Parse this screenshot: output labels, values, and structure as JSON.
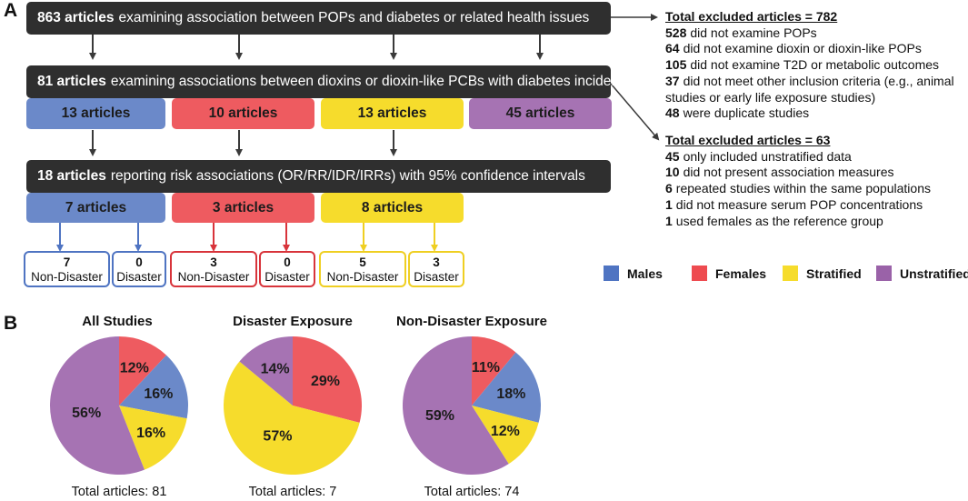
{
  "panel_a_label": "A",
  "panel_b_label": "B",
  "flow": {
    "step1": {
      "count": "863 articles",
      "text": "examining association between POPs and diabetes or related health issues"
    },
    "step2": {
      "count": "81 articles",
      "text": "examining associations between dioxins or dioxin-like PCBs with diabetes incidence"
    },
    "step3": {
      "count": "18 articles",
      "text": "reporting risk associations (OR/RR/IDR/IRRs) with 95% confidence intervals"
    },
    "categories_row1": [
      {
        "label": "13 articles",
        "color": "#6b89c9"
      },
      {
        "label": "10 articles",
        "color": "#ee5b60"
      },
      {
        "label": "13 articles",
        "color": "#f6dc2c"
      },
      {
        "label": "45 articles",
        "color": "#a673b3"
      }
    ],
    "categories_row2": [
      {
        "label": "7 articles",
        "color": "#6b89c9"
      },
      {
        "label": "3 articles",
        "color": "#ee5b60"
      },
      {
        "label": "8 articles",
        "color": "#f6dc2c"
      }
    ],
    "splits": [
      {
        "border": "#4f74c2",
        "items": [
          {
            "n": "7",
            "label": "Non-Disaster"
          },
          {
            "n": "0",
            "label": "Disaster"
          }
        ]
      },
      {
        "border": "#d8343b",
        "items": [
          {
            "n": "3",
            "label": "Non-Disaster"
          },
          {
            "n": "0",
            "label": "Disaster"
          }
        ]
      },
      {
        "border": "#efcf22",
        "items": [
          {
            "n": "5",
            "label": "Non-Disaster"
          },
          {
            "n": "3",
            "label": "Disaster"
          }
        ]
      }
    ]
  },
  "exclusions": [
    {
      "heading": "Total excluded articles = 782",
      "items": [
        {
          "n": "528",
          "text": "did not examine POPs"
        },
        {
          "n": "64",
          "text": "did not examine dioxin or dioxin-like POPs"
        },
        {
          "n": "105",
          "text": "did not examine T2D or metabolic outcomes"
        },
        {
          "n": "37",
          "text": "did not meet other inclusion criteria (e.g., animal"
        },
        {
          "n": "",
          "text": "studies or early life exposure studies)"
        },
        {
          "n": "48",
          "text": "were duplicate studies"
        }
      ]
    },
    {
      "heading": "Total excluded articles = 63",
      "items": [
        {
          "n": "45",
          "text": "only included unstratified data"
        },
        {
          "n": "10",
          "text": "did not present association measures"
        },
        {
          "n": "6",
          "text": "repeated studies within the same populations"
        },
        {
          "n": "1",
          "text": "did not measure serum POP concentrations"
        },
        {
          "n": "1",
          "text": "used females as the reference group"
        }
      ]
    }
  ],
  "legend": [
    {
      "label": "Males",
      "color": "#4f74c2"
    },
    {
      "label": "Females",
      "color": "#ee4b50"
    },
    {
      "label": "Stratified",
      "color": "#f6dc2c"
    },
    {
      "label": "Unstratified",
      "color": "#9a62a8"
    }
  ],
  "chart_data": [
    {
      "type": "pie",
      "title": "All Studies",
      "footer": "Total articles: 81",
      "slices": [
        {
          "name": "Females",
          "value": 12,
          "label": "12%",
          "color": "#ee5b60"
        },
        {
          "name": "Males",
          "value": 16,
          "label": "16%",
          "color": "#6b89c9"
        },
        {
          "name": "Stratified",
          "value": 16,
          "label": "16%",
          "color": "#f6dc2c"
        },
        {
          "name": "Unstratified",
          "value": 56,
          "label": "56%",
          "color": "#a673b3"
        }
      ]
    },
    {
      "type": "pie",
      "title": "Disaster Exposure",
      "footer": "Total articles: 7",
      "slices": [
        {
          "name": "Females",
          "value": 29,
          "label": "29%",
          "color": "#ee5b60"
        },
        {
          "name": "Stratified",
          "value": 57,
          "label": "57%",
          "color": "#f6dc2c"
        },
        {
          "name": "Unstratified",
          "value": 14,
          "label": "14%",
          "color": "#a673b3"
        }
      ]
    },
    {
      "type": "pie",
      "title": "Non-Disaster Exposure",
      "footer": "Total articles: 74",
      "slices": [
        {
          "name": "Females",
          "value": 11,
          "label": "11%",
          "color": "#ee5b60"
        },
        {
          "name": "Males",
          "value": 18,
          "label": "18%",
          "color": "#6b89c9"
        },
        {
          "name": "Stratified",
          "value": 12,
          "label": "12%",
          "color": "#f6dc2c"
        },
        {
          "name": "Unstratified",
          "value": 59,
          "label": "59%",
          "color": "#a673b3"
        }
      ]
    }
  ]
}
